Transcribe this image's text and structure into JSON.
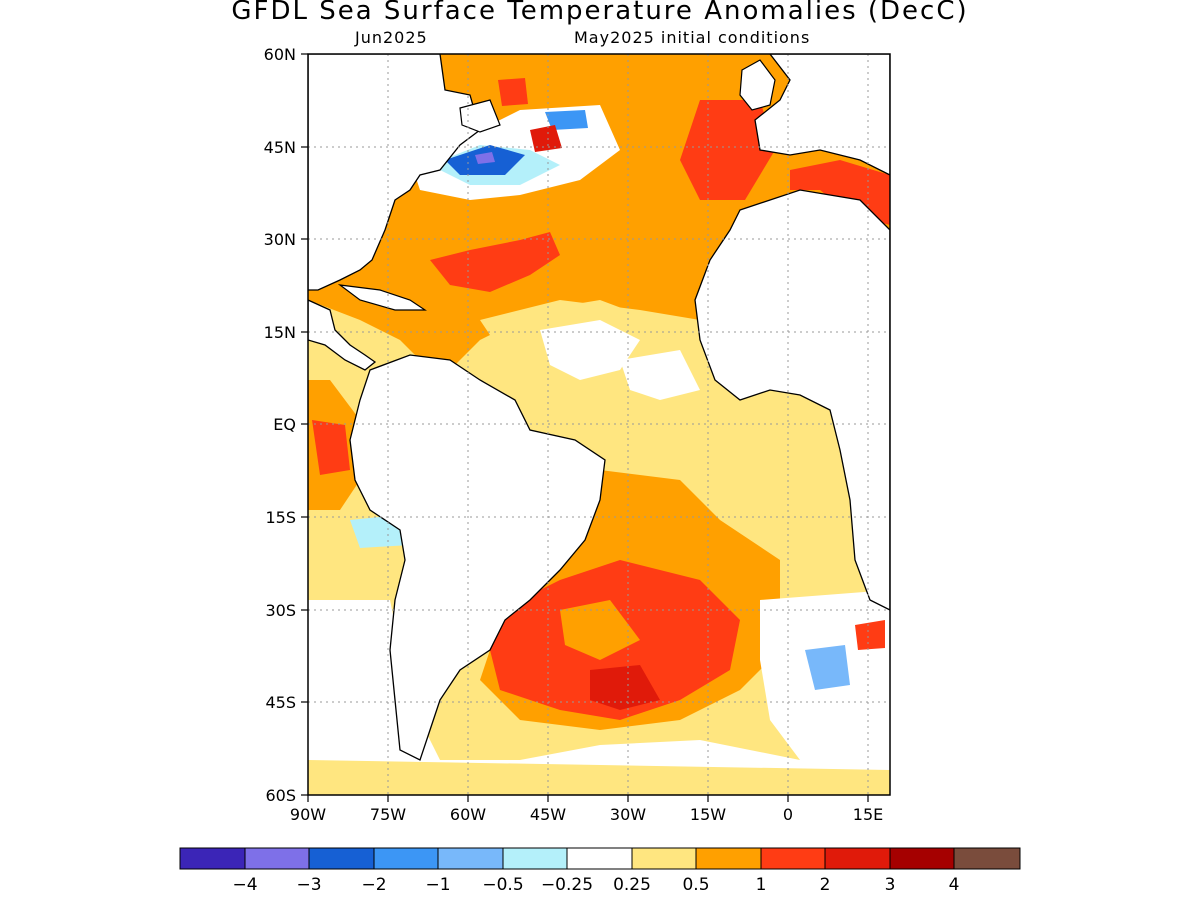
{
  "header": {
    "title": "GFDL Sea Surface Temperature Anomalies (DecC)",
    "subtitle_left": "Jun2025",
    "subtitle_right": "May2025 initial conditions"
  },
  "map": {
    "lat_labels": [
      "60N",
      "45N",
      "30N",
      "15N",
      "EQ",
      "15S",
      "30S",
      "45S",
      "60S"
    ],
    "lon_labels": [
      "90W",
      "75W",
      "60W",
      "45W",
      "30W",
      "15W",
      "0",
      "15E"
    ],
    "extent": {
      "lon_min": -90,
      "lon_max": 18,
      "lat_min": -60,
      "lat_max": 60
    },
    "land_color": "#ffffff"
  },
  "colorbar": {
    "colors": [
      "#3b25b7",
      "#7e70e8",
      "#1660d4",
      "#3c96f5",
      "#78b8fa",
      "#b4f0fa",
      "#ffffff",
      "#ffe680",
      "#ffa000",
      "#ff3c14",
      "#e01a0a",
      "#a50000",
      "#7a4c3c"
    ],
    "labels": [
      "−4",
      "−3",
      "−2",
      "−1",
      "−0.5",
      "−0.25",
      "0.25",
      "0.5",
      "1",
      "2",
      "3",
      "4"
    ]
  }
}
